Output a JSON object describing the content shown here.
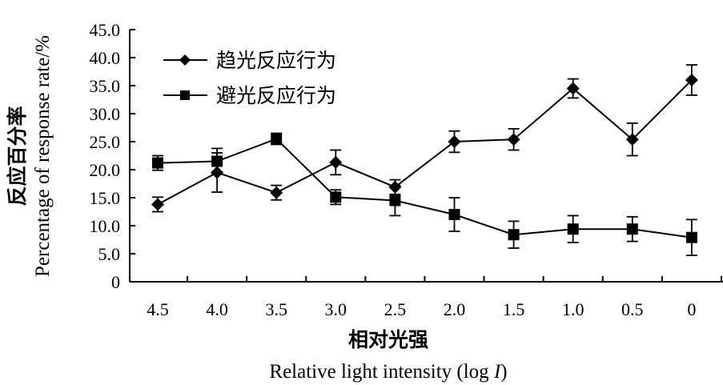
{
  "chart_data": {
    "type": "line",
    "categories": [
      "4.5",
      "4.0",
      "3.5",
      "3.0",
      "2.5",
      "2.0",
      "1.5",
      "1.0",
      "0.5",
      "0"
    ],
    "xlabel_cn": "相对光强",
    "xlabel_en": "Relative light intensity (log I)",
    "xlabel_en_prefix": "Relative light intensity (log ",
    "xlabel_en_var": "I",
    "xlabel_en_suffix": ")",
    "ylabel_cn": "反应百分率",
    "ylabel_en": "Percentage of response rate/%",
    "ylim": [
      0,
      45
    ],
    "yticks": [
      "0",
      "5.0",
      "10.0",
      "15.0",
      "20.0",
      "25.0",
      "30.0",
      "35.0",
      "40.0",
      "45.0"
    ],
    "legend_position": "top-left",
    "series": [
      {
        "name": "趋光反应行为",
        "marker": "diamond",
        "values": [
          13.8,
          19.5,
          15.9,
          21.3,
          16.9,
          25.0,
          25.4,
          34.5,
          25.4,
          36.0
        ],
        "errors": [
          1.3,
          3.5,
          1.3,
          2.2,
          1.3,
          1.9,
          1.9,
          1.7,
          2.9,
          2.7
        ]
      },
      {
        "name": "避光反应行为",
        "marker": "square",
        "values": [
          21.2,
          21.5,
          25.5,
          15.1,
          14.5,
          12.0,
          8.4,
          9.4,
          9.4,
          7.9
        ],
        "errors": [
          1.3,
          2.3,
          1.0,
          1.3,
          2.7,
          3.0,
          2.4,
          2.4,
          2.2,
          3.2
        ]
      }
    ]
  }
}
